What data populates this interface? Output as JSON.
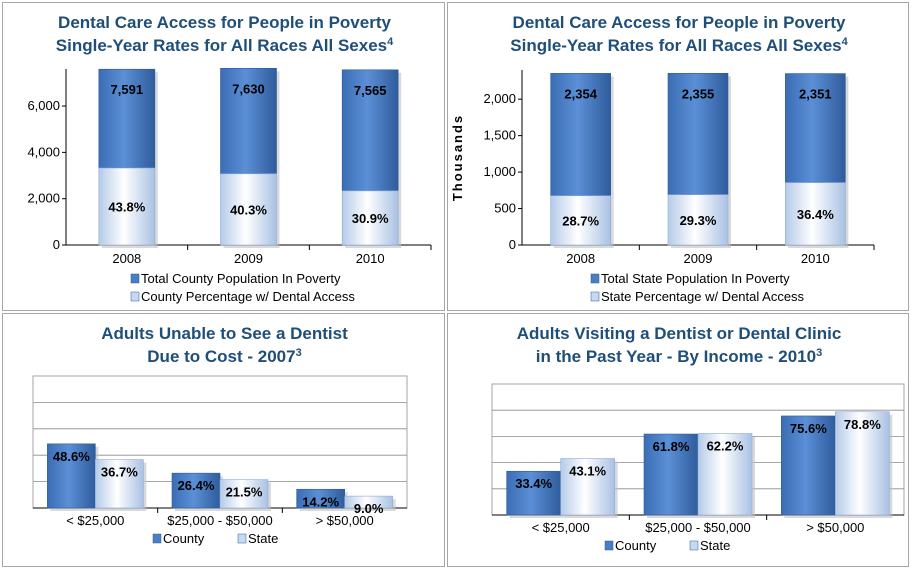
{
  "chart_data": [
    {
      "type": "bar",
      "title_line1": "Dental Care Access for People in Poverty",
      "title_line2": "Single-Year Rates for All Races All Sexes",
      "title_sup": "4",
      "categories": [
        "2008",
        "2009",
        "2010"
      ],
      "ylim": [
        0,
        7600
      ],
      "yticks": [
        "0",
        "2,000",
        "4,000",
        "6,000"
      ],
      "ytick_values": [
        0,
        2000,
        4000,
        6000
      ],
      "series": [
        {
          "name": "Total County Population In Poverty",
          "values": [
            7591,
            7630,
            7565
          ],
          "labels": [
            "7,591",
            "7,630",
            "7,565"
          ]
        },
        {
          "name": "County Percentage w/ Dental Access",
          "values": [
            43.8,
            40.3,
            30.9
          ],
          "labels": [
            "43.8%",
            "40.3%",
            "30.9%"
          ]
        }
      ],
      "legend": "bottom",
      "colors": {
        "primary": "#4a7ec2",
        "secondary": "#c6d9f1"
      }
    },
    {
      "type": "bar",
      "title_line1": "Dental Care Access for People in Poverty",
      "title_line2": "Single-Year Rates for All Races All Sexes",
      "title_sup": "4",
      "ylabel": "Thousands",
      "categories": [
        "2008",
        "2009",
        "2010"
      ],
      "ylim": [
        0,
        2400
      ],
      "yticks": [
        "0",
        "500",
        "1,000",
        "1,500",
        "2,000"
      ],
      "ytick_values": [
        0,
        500,
        1000,
        1500,
        2000
      ],
      "series": [
        {
          "name": "Total State Population In Poverty",
          "values": [
            2354,
            2355,
            2351
          ],
          "labels": [
            "2,354",
            "2,355",
            "2,351"
          ]
        },
        {
          "name": "State Percentage w/ Dental Access",
          "values": [
            28.7,
            29.3,
            36.4
          ],
          "labels": [
            "28.7%",
            "29.3%",
            "36.4%"
          ]
        }
      ],
      "legend": "bottom",
      "colors": {
        "primary": "#4a7ec2",
        "secondary": "#c6d9f1"
      }
    },
    {
      "type": "bar",
      "title_line1": "Adults Unable to See a Dentist",
      "title_line2": "Due to Cost - 2007",
      "title_sup": "3",
      "categories": [
        "< $25,000",
        "$25,000 - $50,000",
        "> $50,000"
      ],
      "ylim": [
        0,
        100
      ],
      "grid": true,
      "series": [
        {
          "name": "County",
          "values": [
            48.6,
            26.4,
            14.2
          ],
          "labels": [
            "48.6%",
            "26.4%",
            "14.2%"
          ]
        },
        {
          "name": "State",
          "values": [
            36.7,
            21.5,
            9.0
          ],
          "labels": [
            "36.7%",
            "21.5%",
            "9.0%"
          ]
        }
      ],
      "legend": "bottom",
      "colors": {
        "primary": "#4a7ec2",
        "secondary": "#c6d9f1"
      }
    },
    {
      "type": "bar",
      "title_line1": "Adults Visiting a Dentist or Dental Clinic",
      "title_line2": "in the Past Year - By Income - 2010",
      "title_sup": "3",
      "categories": [
        "< $25,000",
        "$25,000 - $50,000",
        "> $50,000"
      ],
      "ylim": [
        0,
        100
      ],
      "grid": true,
      "series": [
        {
          "name": "County",
          "values": [
            33.4,
            61.8,
            75.6
          ],
          "labels": [
            "33.4%",
            "61.8%",
            "75.6%"
          ]
        },
        {
          "name": "State",
          "values": [
            43.1,
            62.2,
            78.8
          ],
          "labels": [
            "43.1%",
            "62.2%",
            "78.8%"
          ]
        }
      ],
      "legend": "bottom",
      "colors": {
        "primary": "#4a7ec2",
        "secondary": "#c6d9f1"
      }
    }
  ]
}
